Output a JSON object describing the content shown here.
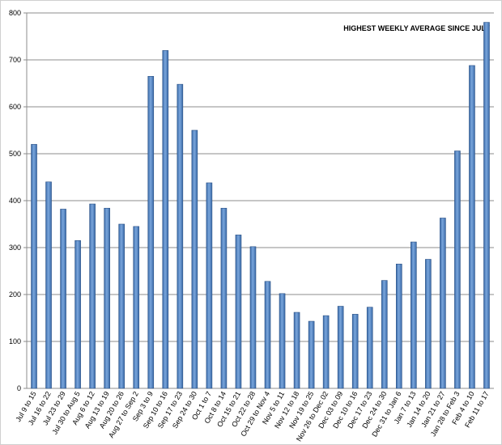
{
  "chart_data": {
    "type": "bar",
    "title": "HIGHEST WEEKLY AVERAGE SINCE JULY",
    "categories": [
      "Jul 9 to 15",
      "Jul 16 to 22",
      "Jul 23 to 29",
      "Jul 30 to Aug 5",
      "Aug 6 to 12",
      "Aug 13 to 19",
      "Aug 20 to 26",
      "Aug 27 to Sep 2",
      "Sep 3 to 9",
      "Sep 10 to 16",
      "Sep 17 to 23",
      "Sep 24 to 30",
      "Oct 1 to 7",
      "Oct 8 to 14",
      "Oct 15 to 21",
      "Oct 22 to 28",
      "Oct 29 to Nov 4",
      "Nov 5 to 11",
      "Nov 12 to 18",
      "Nov 19 to 25",
      "Nov 26 to Dec 02",
      "Dec 03 to 09",
      "Dec 10 to 16",
      "Dec 17 to 23",
      "Dec 24 to 30",
      "Dec 31 to Jan 6",
      "Jan 7 to 13",
      "Jan 14 to 20",
      "Jan 21 to 27",
      "Jan 28 to Feb 3",
      "Feb 4 to 10",
      "Feb 11 to 17"
    ],
    "values": [
      520,
      440,
      382,
      315,
      393,
      384,
      350,
      345,
      665,
      720,
      648,
      550,
      438,
      384,
      327,
      302,
      228,
      202,
      162,
      143,
      155,
      175,
      158,
      173,
      230,
      265,
      312,
      275,
      363,
      506,
      688,
      780
    ],
    "color": "#4f81bd",
    "ylim": [
      0,
      800
    ],
    "yticks": [
      0,
      100,
      200,
      300,
      400,
      500,
      600,
      700,
      800
    ],
    "grid": true
  }
}
